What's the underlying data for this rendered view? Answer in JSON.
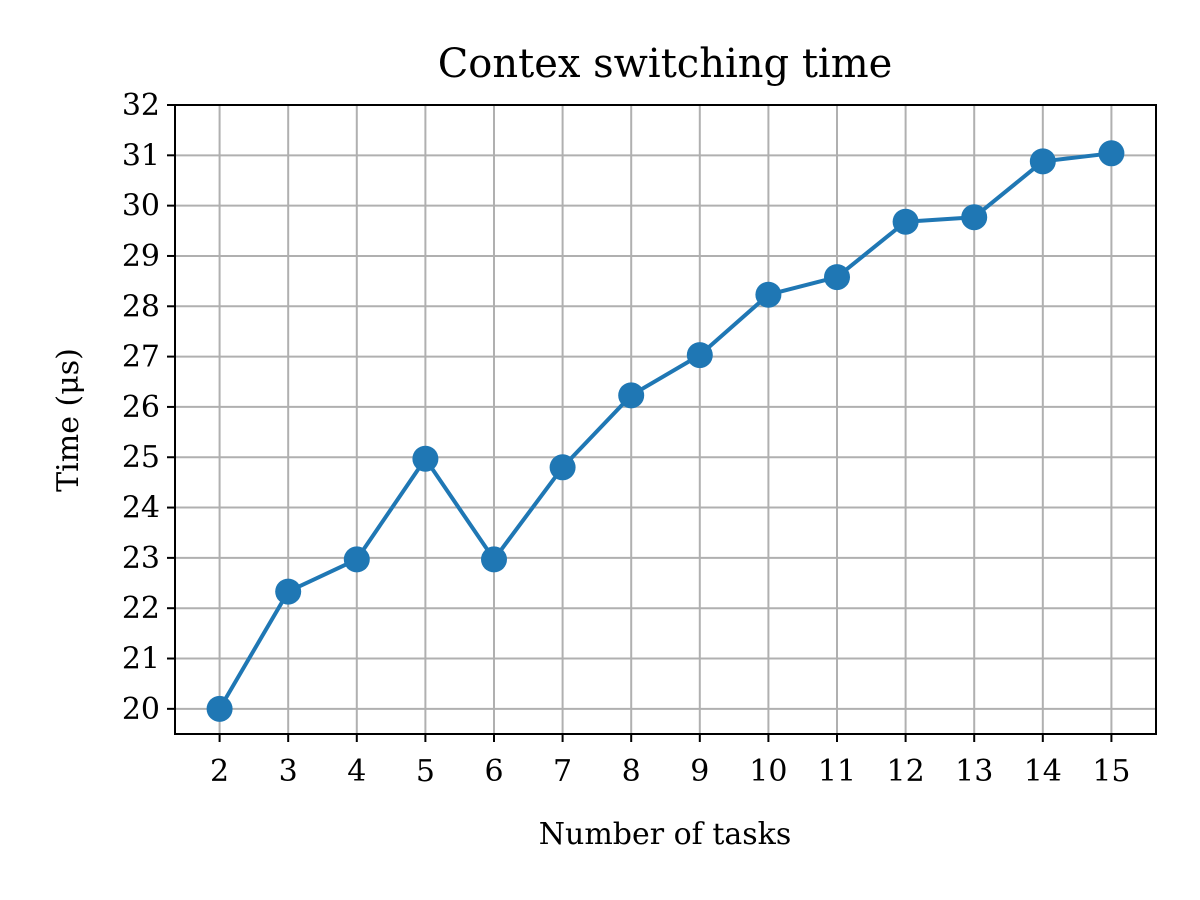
{
  "chart_data": {
    "type": "line",
    "title": "Contex switching time",
    "xlabel": "Number of tasks",
    "ylabel": "Time (μs)",
    "x": [
      2,
      3,
      4,
      5,
      6,
      7,
      8,
      9,
      10,
      11,
      12,
      13,
      14,
      15
    ],
    "xlim": [
      1.35,
      15.65
    ],
    "ylim": [
      19.5,
      32
    ],
    "xticks": [
      2,
      3,
      4,
      5,
      6,
      7,
      8,
      9,
      10,
      11,
      12,
      13,
      14,
      15
    ],
    "yticks": [
      20,
      21,
      22,
      23,
      24,
      25,
      26,
      27,
      28,
      29,
      30,
      31,
      32
    ],
    "grid": true,
    "series": [
      {
        "values": [
          20.0,
          22.33,
          22.97,
          24.97,
          22.97,
          24.8,
          26.23,
          27.03,
          28.23,
          28.58,
          29.68,
          29.77,
          30.88,
          31.04
        ],
        "color": "#1f77b4",
        "marker": "circle"
      }
    ]
  }
}
